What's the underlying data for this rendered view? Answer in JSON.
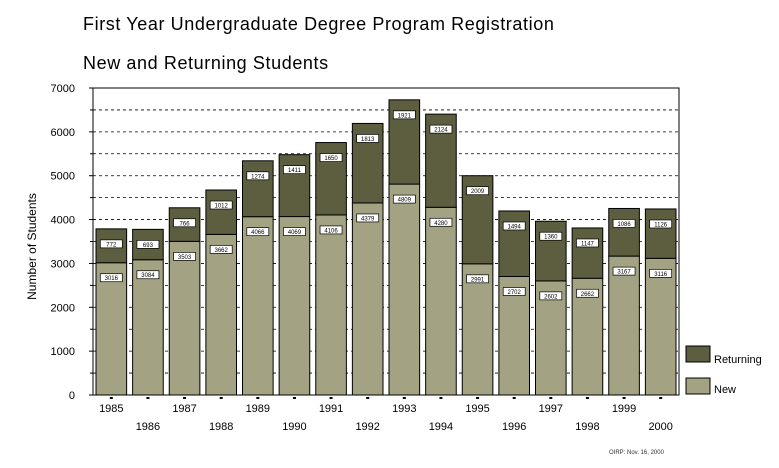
{
  "chart_data": {
    "type": "bar",
    "stacked": true,
    "title": "First Year Undergraduate Degree Program Registration",
    "subtitle": "New and Returning Students",
    "ylabel": "Number of Students",
    "xlabel": "",
    "ylim": [
      0,
      7000
    ],
    "y_ticks": [
      "0",
      "1000",
      "2000",
      "3000",
      "4000",
      "5000",
      "6000",
      "7000"
    ],
    "grid": "dashed horizontal lines every 500",
    "legend_position": "right-bottom",
    "categories": [
      "1985",
      "1986",
      "1987",
      "1988",
      "1989",
      "1990",
      "1991",
      "1992",
      "1993",
      "1994",
      "1995",
      "1996",
      "1997",
      "1998",
      "1999",
      "2000"
    ],
    "series": [
      {
        "name": "New",
        "color": "#a3a283",
        "values": [
          3016,
          3084,
          3503,
          3662,
          4066,
          4069,
          4106,
          4379,
          4809,
          4280,
          2991,
          2702,
          2602,
          2662,
          3167,
          3116
        ]
      },
      {
        "name": "Returning",
        "color": "#5d5d3f",
        "values": [
          772,
          693,
          766,
          1012,
          1274,
          1411,
          1650,
          1813,
          1921,
          2124,
          2009,
          1494,
          1360,
          1147,
          1086,
          1126
        ]
      }
    ],
    "data_labels": {
      "New": [
        "3016",
        "3084",
        "3503",
        "3662",
        "4066",
        "4069",
        "4106",
        "4379",
        "4809",
        "4280",
        "2991",
        "2702",
        "2602",
        "2662",
        "3167",
        "3116"
      ],
      "Returning": [
        "772",
        "693",
        "766",
        "1012",
        "1274",
        "1411",
        "1650",
        "1813",
        "1921",
        "2124",
        "2009",
        "1494",
        "1360",
        "1147",
        "1086",
        "1126"
      ]
    }
  },
  "footnote": "OIRP: Nov. 16, 2000"
}
